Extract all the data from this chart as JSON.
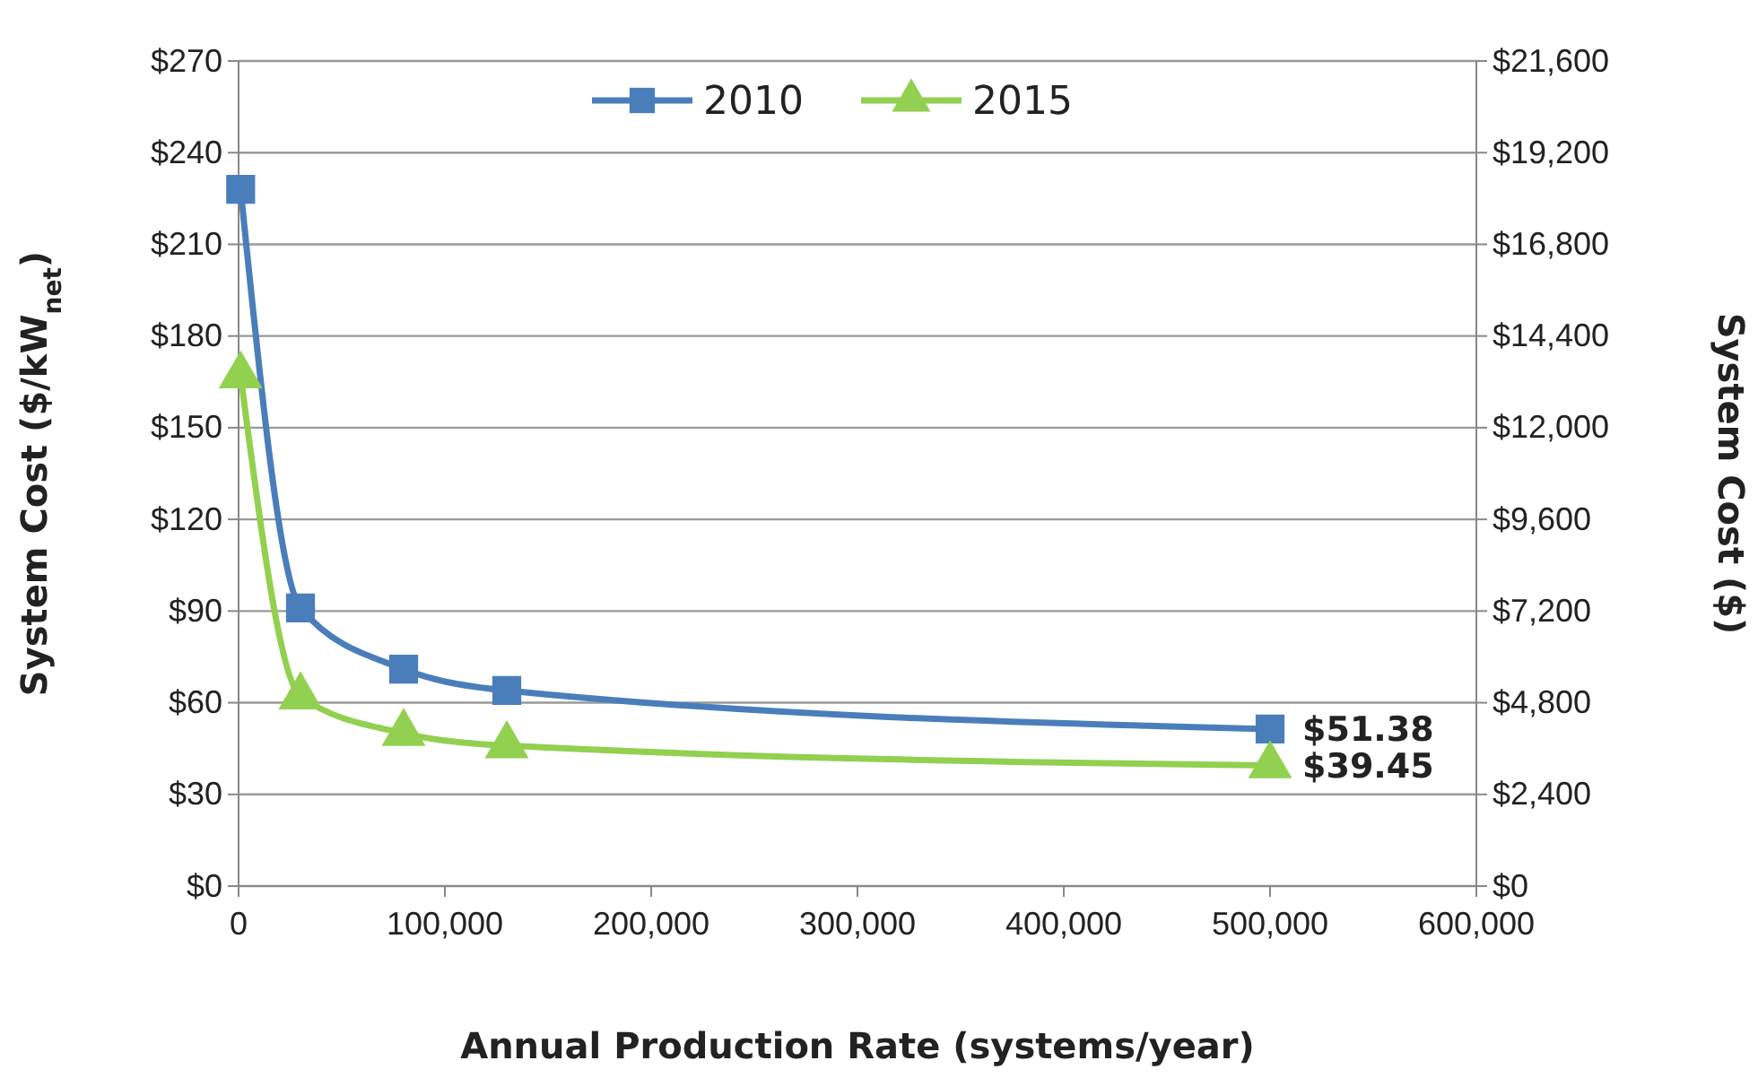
{
  "chart_data": {
    "type": "line",
    "xlabel": "Annual Production Rate (systems/year)",
    "ylabel": "System Cost ($/kW$_{net}$)",
    "y2label": "System Cost ($)",
    "x": [
      1000,
      30000,
      80000,
      130000,
      500000
    ],
    "series": [
      {
        "name": "2010",
        "color": "#4a7ebb",
        "marker": "square",
        "values": [
          228,
          91,
          71,
          64,
          51.38
        ],
        "value_labels": [
          null,
          null,
          null,
          null,
          "$51.38"
        ]
      },
      {
        "name": "2015",
        "color": "#92d050",
        "marker": "triangle",
        "values": [
          167,
          62,
          50,
          46,
          39.45
        ],
        "value_labels": [
          null,
          null,
          null,
          null,
          "$39.45"
        ]
      }
    ],
    "xlim": [
      0,
      600000
    ],
    "xticks": [
      0,
      {
        "value": 100000,
        "label": "100,000"
      },
      {
        "value": 200000,
        "label": "200,000"
      },
      {
        "value": 300000,
        "label": "300,000"
      },
      {
        "value": 400000,
        "label": "400,000"
      },
      {
        "value": 500000,
        "label": "500,000"
      },
      {
        "value": 600000,
        "label": "600,000"
      }
    ],
    "ylim": [
      0,
      270
    ],
    "yticks": [
      {
        "value": 0,
        "label": "$0"
      },
      {
        "value": 30,
        "label": "$30"
      },
      {
        "value": 60,
        "label": "$60"
      },
      {
        "value": 90,
        "label": "$90"
      },
      {
        "value": 120,
        "label": "$120"
      },
      {
        "value": 150,
        "label": "$150"
      },
      {
        "value": 180,
        "label": "$180"
      },
      {
        "value": 210,
        "label": "$210"
      },
      {
        "value": 240,
        "label": "$240"
      },
      {
        "value": 270,
        "label": "$270"
      }
    ],
    "y2lim": [
      0,
      21600
    ],
    "y2ticks": [
      {
        "value": 0,
        "label": "$0"
      },
      {
        "value": 2400,
        "label": "$2,400"
      },
      {
        "value": 4800,
        "label": "$4,800"
      },
      {
        "value": 7200,
        "label": "$7,200"
      },
      {
        "value": 9600,
        "label": "$9,600"
      },
      {
        "value": 12000,
        "label": "$12,000"
      },
      {
        "value": 14400,
        "label": "$14,400"
      },
      {
        "value": 16800,
        "label": "$16,800"
      },
      {
        "value": 19200,
        "label": "$19,200"
      },
      {
        "value": 21600,
        "label": "$21,600"
      }
    ],
    "grid": "y",
    "legend": "top",
    "line_style": "solid"
  }
}
